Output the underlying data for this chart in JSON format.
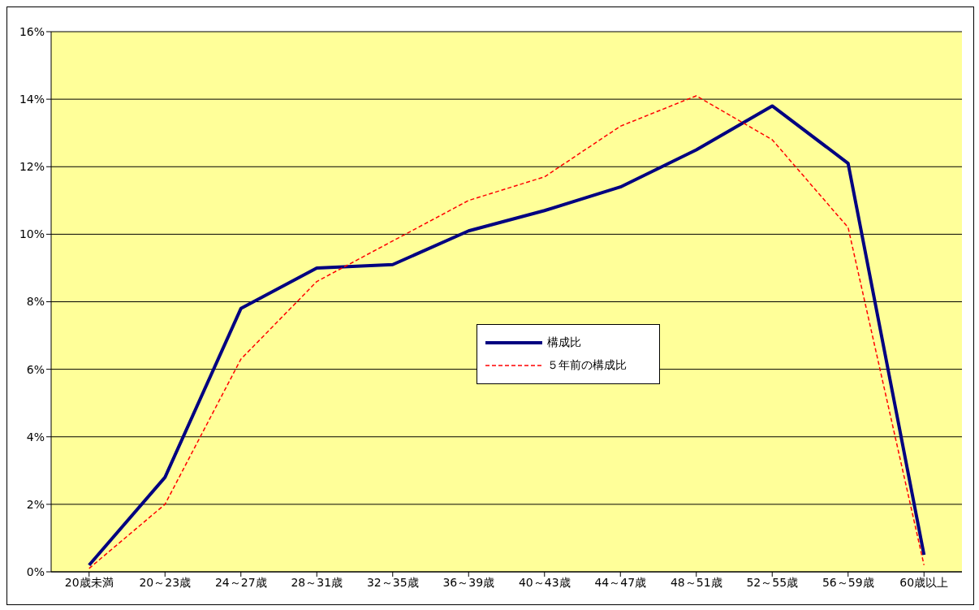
{
  "chart_data": {
    "type": "line",
    "categories": [
      "20歳未満",
      "20～23歳",
      "24～27歳",
      "28～31歳",
      "32～35歳",
      "36～39歳",
      "40～43歳",
      "44～47歳",
      "48～51歳",
      "52～55歳",
      "56～59歳",
      "60歳以上"
    ],
    "series": [
      {
        "name": "構成比",
        "color": "#000080",
        "line_style": "solid",
        "values": [
          0.2,
          2.8,
          7.8,
          9.0,
          9.1,
          10.1,
          10.7,
          11.4,
          12.5,
          13.8,
          12.1,
          0.5
        ]
      },
      {
        "name": "５年前の構成比",
        "color": "#ff0000",
        "line_style": "dashed",
        "values": [
          0.1,
          2.0,
          6.3,
          8.6,
          9.8,
          11.0,
          11.7,
          13.2,
          14.1,
          12.8,
          10.2,
          0.2
        ]
      }
    ],
    "ylim": [
      0,
      16
    ],
    "yticks": [
      {
        "value": 0,
        "label": "0%"
      },
      {
        "value": 2,
        "label": "2%"
      },
      {
        "value": 4,
        "label": "4%"
      },
      {
        "value": 6,
        "label": "6%"
      },
      {
        "value": 8,
        "label": "8%"
      },
      {
        "value": 10,
        "label": "10%"
      },
      {
        "value": 12,
        "label": "12%"
      },
      {
        "value": 14,
        "label": "14%"
      },
      {
        "value": 16,
        "label": "16%"
      }
    ],
    "grid": "y",
    "legend": "center",
    "marker": "none"
  }
}
